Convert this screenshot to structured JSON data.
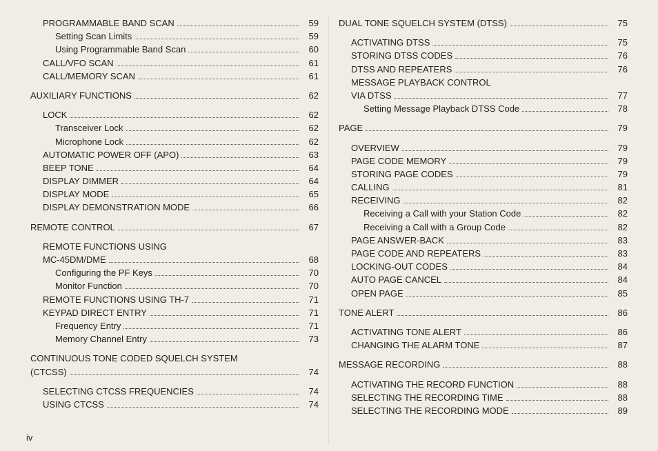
{
  "page_number_label": "iv",
  "typography": {
    "font_family": "Arial, Helvetica, sans-serif",
    "body_fontsize_pt": 10,
    "line_height": 1.4
  },
  "colors": {
    "background": "#f0ede6",
    "text": "#222222",
    "leader_dots": "#555555"
  },
  "columns": {
    "left": [
      {
        "label": "PROGRAMMABLE BAND SCAN",
        "page": 59,
        "indent": 1
      },
      {
        "label": "Setting Scan Limits",
        "page": 59,
        "indent": 2
      },
      {
        "label": "Using Programmable Band Scan",
        "page": 60,
        "indent": 2
      },
      {
        "label": "CALL/VFO SCAN",
        "page": 61,
        "indent": 1
      },
      {
        "label": "CALL/MEMORY SCAN",
        "page": 61,
        "indent": 1
      },
      {
        "gap": true
      },
      {
        "label": "AUXILIARY FUNCTIONS",
        "page": 62,
        "indent": 0
      },
      {
        "gap": true
      },
      {
        "label": "LOCK",
        "page": 62,
        "indent": 1
      },
      {
        "label": "Transceiver Lock",
        "page": 62,
        "indent": 2
      },
      {
        "label": "Microphone Lock",
        "page": 62,
        "indent": 2
      },
      {
        "label": "AUTOMATIC POWER OFF (APO)",
        "page": 63,
        "indent": 1
      },
      {
        "label": "BEEP TONE",
        "page": 64,
        "indent": 1
      },
      {
        "label": "DISPLAY DIMMER",
        "page": 64,
        "indent": 1
      },
      {
        "label": "DISPLAY MODE",
        "page": 65,
        "indent": 1
      },
      {
        "label": "DISPLAY DEMONSTRATION MODE",
        "page": 66,
        "indent": 1
      },
      {
        "gap": true
      },
      {
        "label": "REMOTE CONTROL",
        "page": 67,
        "indent": 0
      },
      {
        "gap": true
      },
      {
        "label": "REMOTE FUNCTIONS USING",
        "page": "",
        "indent": 1,
        "no_dots": true
      },
      {
        "label": "MC-45DM/DME",
        "page": 68,
        "indent": 1
      },
      {
        "label": "Configuring the PF Keys",
        "page": 70,
        "indent": 2
      },
      {
        "label": "Monitor Function",
        "page": 70,
        "indent": 2
      },
      {
        "label": "REMOTE FUNCTIONS USING TH-7",
        "page": 71,
        "indent": 1
      },
      {
        "label": "KEYPAD DIRECT ENTRY",
        "page": 71,
        "indent": 1
      },
      {
        "label": "Frequency Entry",
        "page": 71,
        "indent": 2
      },
      {
        "label": "Memory Channel Entry",
        "page": 73,
        "indent": 2
      },
      {
        "gap": true
      },
      {
        "label": "CONTINUOUS TONE CODED SQUELCH SYSTEM",
        "page": "",
        "indent": 0,
        "no_dots": true
      },
      {
        "label": "(CTCSS)",
        "page": 74,
        "indent": 0
      },
      {
        "gap": true
      },
      {
        "label": "SELECTING CTCSS FREQUENCIES",
        "page": 74,
        "indent": 1
      },
      {
        "label": "USING CTCSS",
        "page": 74,
        "indent": 1
      }
    ],
    "right": [
      {
        "label": "DUAL TONE SQUELCH SYSTEM (DTSS)",
        "page": 75,
        "indent": 0
      },
      {
        "gap": true
      },
      {
        "label": "ACTIVATING DTSS",
        "page": 75,
        "indent": 1
      },
      {
        "label": "STORING DTSS CODES",
        "page": 76,
        "indent": 1
      },
      {
        "label": "DTSS AND REPEATERS",
        "page": 76,
        "indent": 1
      },
      {
        "label": "MESSAGE PLAYBACK CONTROL",
        "page": "",
        "indent": 1,
        "no_dots": true
      },
      {
        "label": "VIA DTSS",
        "page": 77,
        "indent": 1
      },
      {
        "label": "Setting Message Playback DTSS Code",
        "page": 78,
        "indent": 2
      },
      {
        "gap": true
      },
      {
        "label": "PAGE",
        "page": 79,
        "indent": 0
      },
      {
        "gap": true
      },
      {
        "label": "OVERVIEW",
        "page": 79,
        "indent": 1
      },
      {
        "label": "PAGE CODE MEMORY",
        "page": 79,
        "indent": 1
      },
      {
        "label": "STORING PAGE CODES",
        "page": 79,
        "indent": 1
      },
      {
        "label": "CALLING",
        "page": 81,
        "indent": 1
      },
      {
        "label": "RECEIVING",
        "page": 82,
        "indent": 1
      },
      {
        "label": "Receiving a Call with your Station Code",
        "page": 82,
        "indent": 2
      },
      {
        "label": "Receiving a Call with a Group Code",
        "page": 82,
        "indent": 2
      },
      {
        "label": "PAGE ANSWER-BACK",
        "page": 83,
        "indent": 1
      },
      {
        "label": "PAGE CODE AND REPEATERS",
        "page": 83,
        "indent": 1
      },
      {
        "label": "LOCKING-OUT CODES",
        "page": 84,
        "indent": 1
      },
      {
        "label": "AUTO PAGE CANCEL",
        "page": 84,
        "indent": 1
      },
      {
        "label": "OPEN PAGE",
        "page": 85,
        "indent": 1
      },
      {
        "gap": true
      },
      {
        "label": "TONE ALERT",
        "page": 86,
        "indent": 0
      },
      {
        "gap": true
      },
      {
        "label": "ACTIVATING TONE ALERT",
        "page": 86,
        "indent": 1
      },
      {
        "label": "CHANGING THE ALARM TONE",
        "page": 87,
        "indent": 1
      },
      {
        "gap": true
      },
      {
        "label": "MESSAGE RECORDING",
        "page": 88,
        "indent": 0
      },
      {
        "gap": true
      },
      {
        "label": "ACTIVATING THE RECORD FUNCTION",
        "page": 88,
        "indent": 1
      },
      {
        "label": "SELECTING THE RECORDING TIME",
        "page": 88,
        "indent": 1
      },
      {
        "label": "SELECTING THE RECORDING MODE",
        "page": 89,
        "indent": 1
      }
    ]
  }
}
